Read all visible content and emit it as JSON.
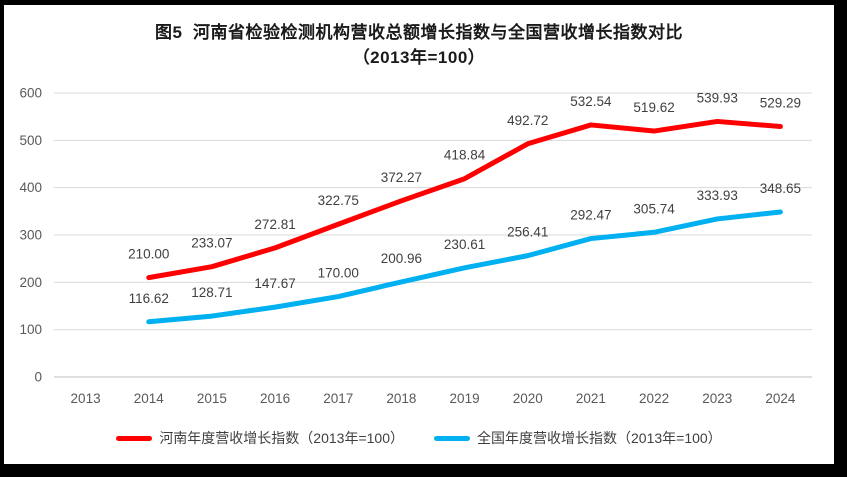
{
  "window": {
    "background": "#ffffff",
    "border_color": "#000000"
  },
  "title": {
    "line1": "图5  河南省检验检测机构营收总额增长指数与全国营收增长指数对比",
    "line2": "（2013年=100）"
  },
  "chart_data": {
    "type": "line",
    "title": "图5 河南省检验检测机构营收总额增长指数与全国营收增长指数对比（2013年=100）",
    "categories": [
      "2013",
      "2014",
      "2015",
      "2016",
      "2017",
      "2018",
      "2019",
      "2020",
      "2021",
      "2022",
      "2023",
      "2024"
    ],
    "series": [
      {
        "name": "河南年度营收增长指数（2013年=100）",
        "color": "#FF0000",
        "values": [
          null,
          210.0,
          233.07,
          272.81,
          322.75,
          372.27,
          418.84,
          492.72,
          532.54,
          519.62,
          539.93,
          529.29
        ]
      },
      {
        "name": "全国年度营收增长指数（2013年=100）",
        "color": "#00B0F0",
        "values": [
          null,
          116.62,
          128.71,
          147.67,
          170.0,
          200.96,
          230.61,
          256.41,
          292.47,
          305.74,
          333.93,
          348.65
        ]
      }
    ],
    "xlabel": "",
    "ylabel": "",
    "ylim": [
      0,
      600
    ],
    "ytick_step": 100,
    "ytick_labels": [
      "0",
      "100",
      "200",
      "300",
      "400",
      "500",
      "600"
    ],
    "grid": true,
    "gridline_color": "#d9d9d9",
    "axis_line_color": "#bfbfbf",
    "axis_text_color": "#595959",
    "data_labels": true,
    "data_label_decimals": 2,
    "data_label_color": "#404040",
    "line_width": 5,
    "markers": false,
    "legend_position": "bottom"
  }
}
